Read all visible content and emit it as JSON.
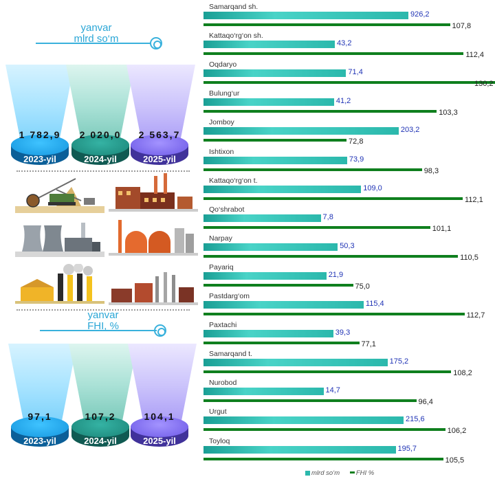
{
  "section_production": {
    "caption_line1": "yanvar",
    "caption_line2": "mlrd so‘m",
    "items": [
      {
        "year": "2023-yil",
        "value": "1 782,9"
      },
      {
        "year": "2024-yil",
        "value": "2 020,0"
      },
      {
        "year": "2025-yil",
        "value": "2 563,7"
      }
    ]
  },
  "section_index": {
    "caption_line1": "yanvar",
    "caption_line2": "FHI, %",
    "items": [
      {
        "year": "2023-yil",
        "value": "97,1"
      },
      {
        "year": "2024-yil",
        "value": "107,2"
      },
      {
        "year": "2025-yil",
        "value": "104,1"
      }
    ]
  },
  "illustrations": [
    "mining-excavator-icon",
    "factory-icon",
    "power-plant-icon",
    "refinery-icon",
    "industrial-plant-icon",
    "industrial-town-icon"
  ],
  "colors": {
    "mlrd_bar": "#2bb8ac",
    "fhi_bar": "#0f7f1e",
    "mlrd_label": "#1f33b5",
    "caption": "#2aa6d6"
  },
  "chart_data": {
    "type": "bar",
    "orientation": "horizontal",
    "categories": [
      "Samarqand sh.",
      "Kattaqo‘rg‘on sh.",
      "Oqdaryo",
      "Bulung‘ur",
      "Jomboy",
      "Ishtixon",
      "Kattaqo‘rg‘on t.",
      "Qo‘shrabot",
      "Narpay",
      "Payariq",
      "Pastdarg‘om",
      "Paxtachi",
      "Samarqand t.",
      "Nurobod",
      "Urgut",
      "Toyloq"
    ],
    "series": [
      {
        "name": "mlrd so‘m",
        "values": [
          926.2,
          43.2,
          71.4,
          41.2,
          203.2,
          73.9,
          109.0,
          7.8,
          50.3,
          21.9,
          115.4,
          39.3,
          175.2,
          14.7,
          215.6,
          195.7
        ],
        "labels": [
          "926,2",
          "43,2",
          "71,4",
          "41,2",
          "203,2",
          "73,9",
          "109,0",
          "7,8",
          "50,3",
          "21,9",
          "115,4",
          "39,3",
          "175,2",
          "14,7",
          "215,6",
          "195,7"
        ]
      },
      {
        "name": "FHI %",
        "values": [
          107.8,
          112.4,
          130.2,
          103.3,
          72.8,
          98.3,
          112.1,
          101.1,
          110.5,
          75.0,
          112.7,
          77.1,
          108.2,
          96.4,
          106.2,
          105.5
        ],
        "labels": [
          "107,8",
          "112,4",
          "130,2",
          "103,3",
          "72,8",
          "98,3",
          "112,1",
          "101,1",
          "110,5",
          "75,0",
          "112,7",
          "77,1",
          "108,2",
          "96,4",
          "106,2",
          "105,5"
        ]
      }
    ],
    "legend": "bottom"
  }
}
